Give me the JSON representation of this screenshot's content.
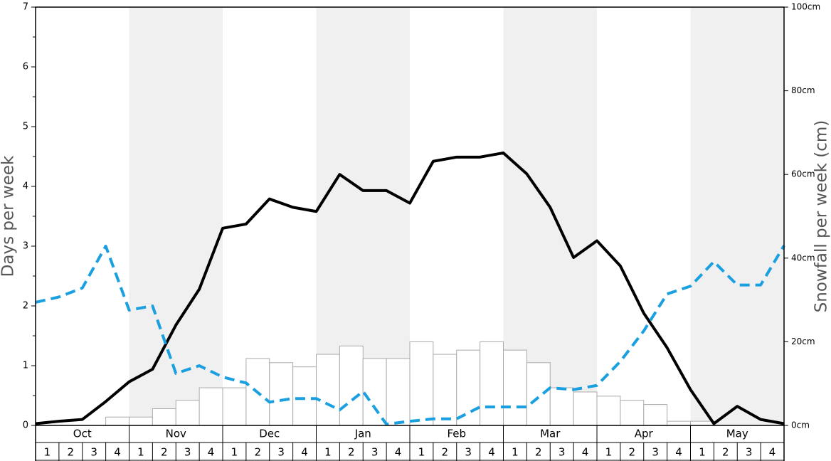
{
  "chart_data": {
    "type": "bar-line",
    "ylabel": "Days per week",
    "y2label": "Snowfall per week (cm)",
    "months": [
      "Oct",
      "Nov",
      "Dec",
      "Jan",
      "Feb",
      "Mar",
      "Apr",
      "May"
    ],
    "categories": [
      "1",
      "2",
      "3",
      "4",
      "1",
      "2",
      "3",
      "4",
      "1",
      "2",
      "3",
      "4",
      "1",
      "2",
      "3",
      "4",
      "1",
      "2",
      "3",
      "4",
      "1",
      "2",
      "3",
      "4",
      "1",
      "2",
      "3",
      "4",
      "1",
      "2",
      "3",
      "4"
    ],
    "xlim": [
      0,
      32
    ],
    "x": [
      0,
      1,
      2,
      3,
      4,
      5,
      6,
      7,
      8,
      9,
      10,
      11,
      12,
      13,
      14,
      15,
      16,
      17,
      18,
      19,
      20,
      21,
      22,
      23,
      24,
      25,
      26,
      27,
      28,
      29,
      30,
      31,
      32
    ],
    "ylim": [
      0,
      7
    ],
    "yticks": [
      0,
      1,
      2,
      3,
      4,
      5,
      6,
      7
    ],
    "y2lim": [
      0,
      100
    ],
    "y2ticks": [
      {
        "value": 0,
        "label": "0cm"
      },
      {
        "value": 20,
        "label": "20cm"
      },
      {
        "value": 40,
        "label": "40cm"
      },
      {
        "value": 60,
        "label": "60cm"
      },
      {
        "value": 80,
        "label": "80cm"
      },
      {
        "value": 100,
        "label": "100cm"
      }
    ],
    "bars": {
      "axis": "y2",
      "color": "#ffffff",
      "edge": "#aaaaaa",
      "values": [
        0,
        0,
        0,
        2,
        2,
        4,
        6,
        9,
        9,
        16,
        15,
        14,
        17,
        19,
        16,
        16,
        20,
        17,
        18,
        20,
        18,
        15,
        9,
        8,
        7,
        6,
        5,
        1,
        1,
        0,
        0,
        0
      ]
    },
    "series": [
      {
        "color": "#000000",
        "dash": false,
        "values": [
          0.03,
          0.07,
          0.1,
          0.4,
          0.73,
          0.94,
          1.68,
          2.28,
          3.3,
          3.37,
          3.79,
          3.65,
          3.58,
          4.2,
          3.93,
          3.93,
          3.72,
          4.42,
          4.49,
          4.49,
          4.56,
          4.21,
          3.65,
          2.81,
          3.09,
          2.67,
          1.88,
          1.3,
          0.6,
          0.03,
          0.32,
          0.1,
          0.03
        ]
      },
      {
        "color": "#1a9fe0",
        "dash": true,
        "values": [
          2.06,
          2.15,
          2.3,
          3.0,
          1.93,
          2.0,
          0.87,
          1.0,
          0.81,
          0.71,
          0.39,
          0.45,
          0.45,
          0.26,
          0.57,
          0.02,
          0.07,
          0.11,
          0.11,
          0.31,
          0.31,
          0.31,
          0.63,
          0.6,
          0.67,
          1.07,
          1.58,
          2.2,
          2.33,
          2.74,
          2.35,
          2.35,
          3.01
        ]
      }
    ]
  }
}
